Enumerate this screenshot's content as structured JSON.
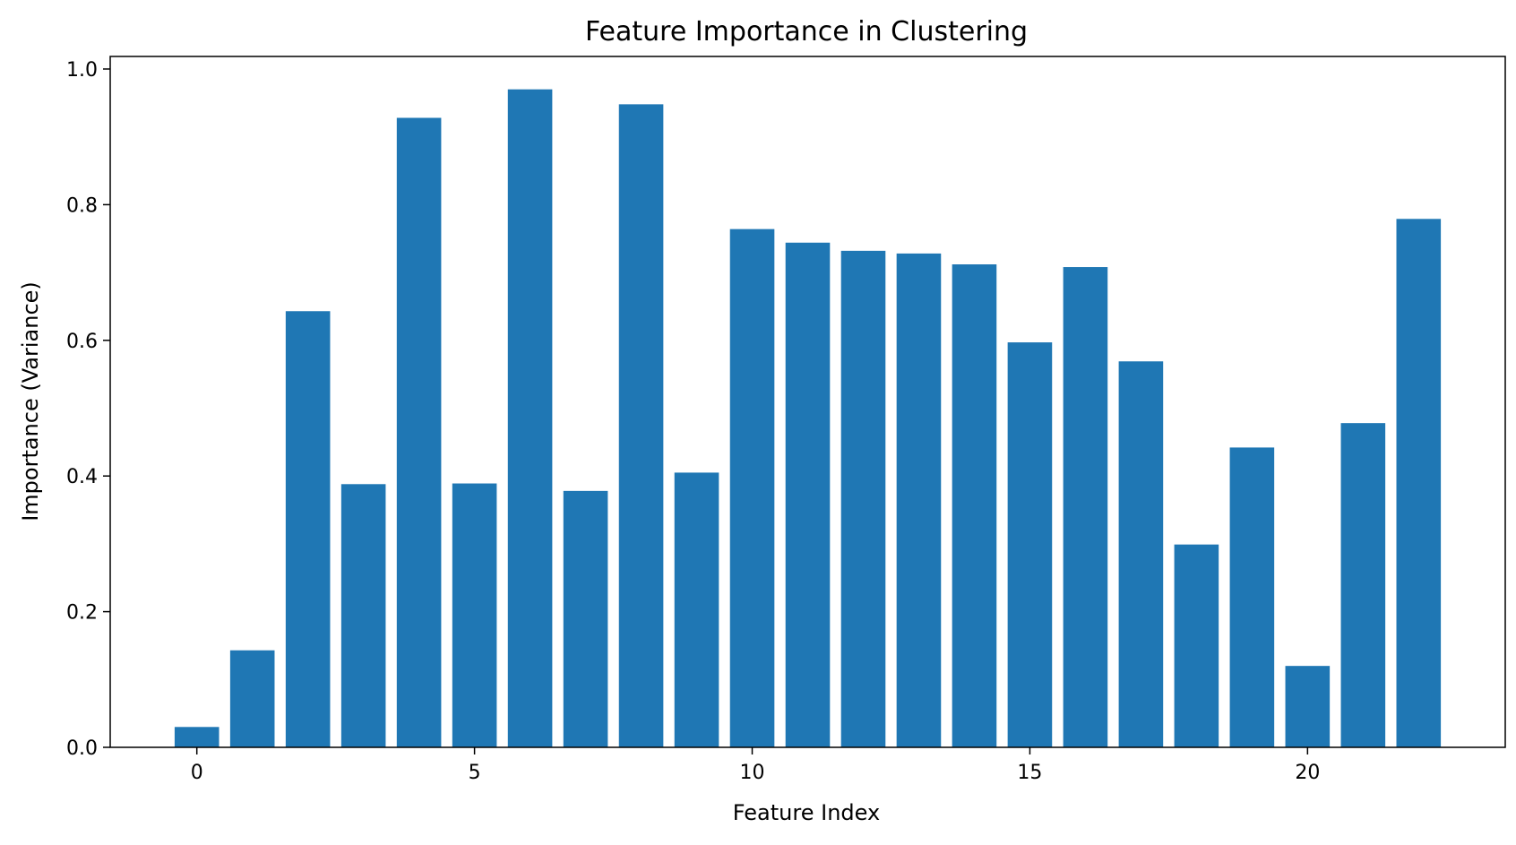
{
  "chart_data": {
    "type": "bar",
    "title": "Feature Importance in Clustering",
    "xlabel": "Feature Index",
    "ylabel": "Importance (Variance)",
    "x": [
      0,
      1,
      2,
      3,
      4,
      5,
      6,
      7,
      8,
      9,
      10,
      11,
      12,
      13,
      14,
      15,
      16,
      17,
      18,
      19,
      20,
      21,
      22
    ],
    "values": [
      0.03,
      0.143,
      0.643,
      0.388,
      0.928,
      0.389,
      0.97,
      0.378,
      0.948,
      0.405,
      0.764,
      0.744,
      0.732,
      0.728,
      0.712,
      0.597,
      0.708,
      0.569,
      0.299,
      0.442,
      0.12,
      0.478,
      0.779
    ],
    "xlim": [
      -1.56,
      23.56
    ],
    "ylim": [
      0,
      1.0185
    ],
    "xticks": [
      0,
      5,
      10,
      15,
      20
    ],
    "yticks": [
      0.0,
      0.2,
      0.4,
      0.6,
      0.8,
      1.0
    ],
    "xtick_labels": [
      "0",
      "5",
      "10",
      "15",
      "20"
    ],
    "ytick_labels": [
      "0.0",
      "0.2",
      "0.4",
      "0.6",
      "0.8",
      "1.0"
    ],
    "bar_color": "#1f77b4",
    "grid": false,
    "legend": "none"
  }
}
